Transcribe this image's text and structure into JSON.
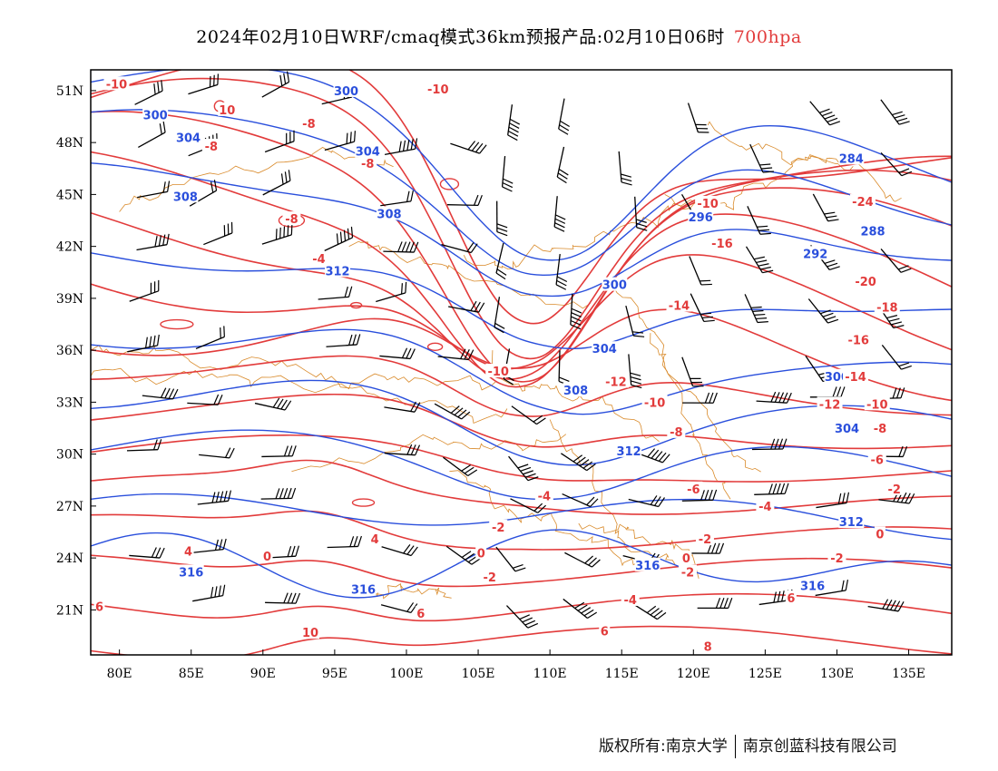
{
  "title": {
    "main": "2024年02月10日WRF/cmaq模式36km预报产品:02月10日06时",
    "level": "700hpa"
  },
  "axes": {
    "lat_labels": [
      "51N",
      "48N",
      "45N",
      "42N",
      "39N",
      "36N",
      "33N",
      "30N",
      "27N",
      "24N",
      "21N"
    ],
    "lat_values": [
      51,
      48,
      45,
      42,
      39,
      36,
      33,
      30,
      27,
      24,
      21
    ],
    "lon_labels": [
      "80E",
      "85E",
      "90E",
      "95E",
      "100E",
      "105E",
      "110E",
      "115E",
      "120E",
      "125E",
      "130E",
      "135E"
    ],
    "lon_values": [
      80,
      85,
      90,
      95,
      100,
      105,
      110,
      115,
      120,
      125,
      130,
      135
    ],
    "lon_range": [
      78,
      138
    ],
    "lat_range": [
      18.4,
      52.2
    ]
  },
  "colors": {
    "temperature": "#e23b3b",
    "height": "#2a4fdc",
    "border": "#d98a2a",
    "wind": "#000000"
  },
  "height_labels": [
    {
      "text": "300",
      "lon": 82.5,
      "lat": 49.6
    },
    {
      "text": "300",
      "lon": 95.8,
      "lat": 51.0
    },
    {
      "text": "304",
      "lon": 84.8,
      "lat": 48.3
    },
    {
      "text": "304",
      "lon": 97.3,
      "lat": 47.5
    },
    {
      "text": "308",
      "lon": 84.6,
      "lat": 44.9
    },
    {
      "text": "308",
      "lon": 98.8,
      "lat": 43.9
    },
    {
      "text": "312",
      "lon": 95.2,
      "lat": 40.6
    },
    {
      "text": "300",
      "lon": 114.5,
      "lat": 39.8
    },
    {
      "text": "304",
      "lon": 113.8,
      "lat": 36.1
    },
    {
      "text": "308",
      "lon": 111.8,
      "lat": 33.7
    },
    {
      "text": "312",
      "lon": 115.5,
      "lat": 30.2
    },
    {
      "text": "296",
      "lon": 120.5,
      "lat": 43.7
    },
    {
      "text": "292",
      "lon": 128.5,
      "lat": 41.6
    },
    {
      "text": "288",
      "lon": 132.5,
      "lat": 42.9
    },
    {
      "text": "284",
      "lon": 131.0,
      "lat": 47.1
    },
    {
      "text": "300",
      "lon": 130.0,
      "lat": 34.5
    },
    {
      "text": "304",
      "lon": 130.7,
      "lat": 31.5
    },
    {
      "text": "312",
      "lon": 131.0,
      "lat": 26.1
    },
    {
      "text": "316",
      "lon": 85.0,
      "lat": 23.2
    },
    {
      "text": "316",
      "lon": 97.0,
      "lat": 22.2
    },
    {
      "text": "316",
      "lon": 116.8,
      "lat": 23.6
    },
    {
      "text": "316",
      "lon": 128.3,
      "lat": 22.4
    }
  ],
  "temp_labels": [
    {
      "text": "-10",
      "lon": 79.8,
      "lat": 51.4
    },
    {
      "text": "-10",
      "lon": 102.2,
      "lat": 51.1
    },
    {
      "text": "10",
      "lon": 87.5,
      "lat": 49.9
    },
    {
      "text": "-8",
      "lon": 93.2,
      "lat": 49.1
    },
    {
      "text": "-8",
      "lon": 86.4,
      "lat": 47.8
    },
    {
      "text": "-8",
      "lon": 97.3,
      "lat": 46.8
    },
    {
      "text": "-8",
      "lon": 92.0,
      "lat": 43.6
    },
    {
      "text": "-4",
      "lon": 93.9,
      "lat": 41.3
    },
    {
      "text": "-10",
      "lon": 121.0,
      "lat": 44.5
    },
    {
      "text": "-16",
      "lon": 122.0,
      "lat": 42.2
    },
    {
      "text": "-24",
      "lon": 131.8,
      "lat": 44.6
    },
    {
      "text": "-20",
      "lon": 132.0,
      "lat": 40.0
    },
    {
      "text": "-18",
      "lon": 133.5,
      "lat": 38.5
    },
    {
      "text": "-14",
      "lon": 119.0,
      "lat": 38.6
    },
    {
      "text": "-16",
      "lon": 131.5,
      "lat": 36.6
    },
    {
      "text": "-14",
      "lon": 131.3,
      "lat": 34.5
    },
    {
      "text": "-12",
      "lon": 129.5,
      "lat": 32.9
    },
    {
      "text": "-10",
      "lon": 132.8,
      "lat": 32.9
    },
    {
      "text": "-8",
      "lon": 133.0,
      "lat": 31.5
    },
    {
      "text": "-6",
      "lon": 132.8,
      "lat": 29.7
    },
    {
      "text": "-2",
      "lon": 134.0,
      "lat": 28.0
    },
    {
      "text": "0",
      "lon": 133.0,
      "lat": 25.4
    },
    {
      "text": "-2",
      "lon": 130.0,
      "lat": 24.0
    },
    {
      "text": "-4",
      "lon": 125.0,
      "lat": 27.0
    },
    {
      "text": "-10",
      "lon": 106.4,
      "lat": 34.8
    },
    {
      "text": "-12",
      "lon": 114.6,
      "lat": 34.2
    },
    {
      "text": "-10",
      "lon": 117.3,
      "lat": 33.0
    },
    {
      "text": "-8",
      "lon": 118.8,
      "lat": 31.3
    },
    {
      "text": "-6",
      "lon": 120.0,
      "lat": 28.0
    },
    {
      "text": "-4",
      "lon": 109.6,
      "lat": 27.6
    },
    {
      "text": "-2",
      "lon": 120.8,
      "lat": 25.1
    },
    {
      "text": "-2",
      "lon": 106.4,
      "lat": 25.8
    },
    {
      "text": "0",
      "lon": 105.2,
      "lat": 24.3
    },
    {
      "text": "0",
      "lon": 119.5,
      "lat": 24.0
    },
    {
      "text": "-2",
      "lon": 119.6,
      "lat": 23.2
    },
    {
      "text": "-2",
      "lon": 105.8,
      "lat": 22.9
    },
    {
      "text": "-4",
      "lon": 115.6,
      "lat": 21.6
    },
    {
      "text": "4",
      "lon": 84.8,
      "lat": 24.4
    },
    {
      "text": "4",
      "lon": 97.8,
      "lat": 25.1
    },
    {
      "text": "0",
      "lon": 90.3,
      "lat": 24.1
    },
    {
      "text": "6",
      "lon": 78.6,
      "lat": 21.2
    },
    {
      "text": "6",
      "lon": 101.0,
      "lat": 20.8
    },
    {
      "text": "10",
      "lon": 93.3,
      "lat": 19.7
    },
    {
      "text": "6",
      "lon": 113.8,
      "lat": 19.8
    },
    {
      "text": "6",
      "lon": 126.8,
      "lat": 21.7
    },
    {
      "text": "8",
      "lon": 121.0,
      "lat": 18.9
    }
  ],
  "footer": {
    "left": "版权所有:南京大学",
    "right": "南京创蓝科技有限公司"
  }
}
